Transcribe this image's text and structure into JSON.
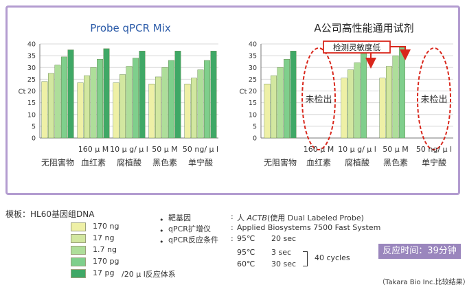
{
  "colors": {
    "accent": "#9a86bd",
    "border": "#b39cd0",
    "ellipse": "#d9271c",
    "title_left": "#2a5aa8",
    "ramp": [
      "#eef0a6",
      "#d2e7a0",
      "#aede9a",
      "#7fcf8c",
      "#3fa866"
    ]
  },
  "chart_data": [
    {
      "type": "bar",
      "title": "Probe qPCR Mix",
      "ylabel": "Ct",
      "ylim": [
        0,
        40
      ],
      "yticks": [
        0,
        5,
        10,
        15,
        20,
        25,
        30,
        35,
        40
      ],
      "grid": true,
      "categories": [
        "无阻害物",
        "血红素",
        "腐植酸",
        "黑色素",
        "单宁酸"
      ],
      "category_sublabels": [
        "",
        "160 μ M",
        "10 μ g/ μ l",
        "50 μ M",
        "50 ng/ μ l"
      ],
      "values_by_category": [
        [
          24,
          27.5,
          31,
          34.5,
          37.5
        ],
        [
          23.5,
          26.5,
          30,
          33.5,
          38
        ],
        [
          23.5,
          27,
          30.5,
          34,
          37
        ],
        [
          23,
          26,
          30,
          33,
          37
        ],
        [
          23,
          25.5,
          29,
          33,
          37
        ]
      ],
      "not_detected_labels": []
    },
    {
      "type": "bar",
      "title": "A公司高性能通用试剂",
      "ylabel": "Ct",
      "ylim": [
        0,
        40
      ],
      "yticks": [
        0,
        5,
        10,
        15,
        20,
        25,
        30,
        35,
        40
      ],
      "grid": true,
      "categories": [
        "无阻害物",
        "血红素",
        "腐植酸",
        "黑色素",
        "单宁酸"
      ],
      "category_sublabels": [
        "",
        "160 μ M",
        "10 μ g/ μ l",
        "50 μ M",
        "50 ng/ μ l"
      ],
      "values_by_category": [
        [
          23,
          26.5,
          30,
          33.5,
          37
        ],
        null,
        [
          25.5,
          29,
          32,
          36,
          0
        ],
        [
          25.5,
          30.5,
          35,
          38.5,
          0
        ],
        null
      ],
      "not_detected_labels": [
        "",
        "未检出",
        "",
        "",
        "未检出"
      ],
      "annotation": "检测灵敏度低"
    }
  ],
  "legend": {
    "title": "模板：HL60基因组DNA",
    "items": [
      "170 ng",
      "17 ng",
      "1.7 ng",
      "170 pg",
      "17 pg"
    ],
    "suffix": "/20 μ l反应体系"
  },
  "conditions": {
    "labels": [
      "靶基因",
      "qPCR扩增仪",
      "qPCR反应条件"
    ],
    "gene_prefix": "人",
    "gene_name": "ACTB",
    "gene_suffix": "(使用 Dual Labeled Probe)",
    "instrument": "Applied Biosystems 7500 Fast System",
    "steps": [
      {
        "temp": "95℃",
        "time": "20 sec"
      },
      {
        "temp": "95℃",
        "time": "3 sec"
      },
      {
        "temp": "60℃",
        "time": "30 sec"
      }
    ],
    "cycles": "40 cycles"
  },
  "badge": "反应时间：39分钟",
  "footnote": "（Takara Bio Inc.比较结果）"
}
